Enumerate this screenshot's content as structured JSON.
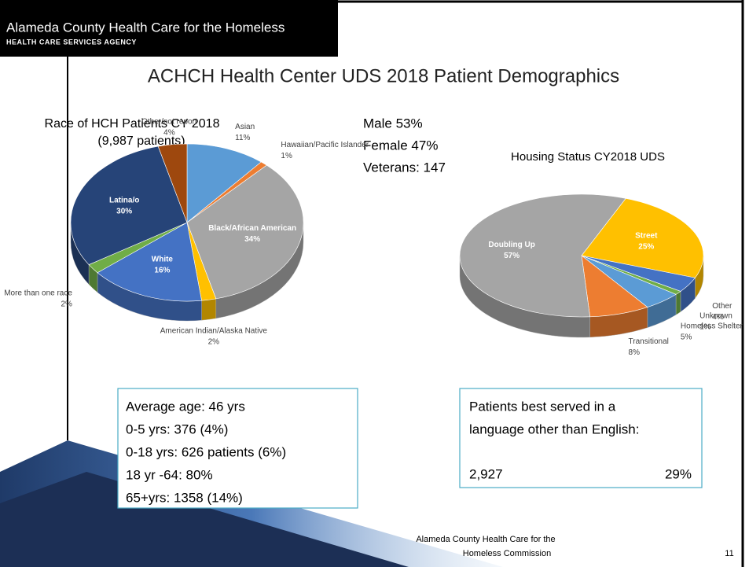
{
  "header": {
    "title": "Alameda County Health Care for the Homeless",
    "subtitle": "Health Care Services Agency"
  },
  "title": "ACHCH Health Center UDS 2018 Patient Demographics",
  "gender": [
    "Male 53%",
    "Female 47%",
    "Veterans: 147"
  ],
  "chart_data": [
    {
      "type": "pie",
      "title": "Race of HCH Patients CY 2018",
      "subtitle": "(9,987 patients)",
      "categories": [
        "Asian",
        "Hawaiian/Pacific Islander",
        "Black/African American",
        "American Indian/Alaska Native",
        "White",
        "More than one race",
        "Latina/o",
        "Other/not report"
      ],
      "values": [
        11,
        1,
        34,
        2,
        16,
        2,
        30,
        4
      ],
      "value_labels": [
        "11%",
        "1%",
        "34%",
        "2%",
        "16%",
        "2%",
        "30%",
        "4%"
      ],
      "colors": [
        "#5b9bd5",
        "#ed7d31",
        "#a5a5a5",
        "#ffc000",
        "#4472c4",
        "#70ad47",
        "#264478",
        "#9e480e"
      ]
    },
    {
      "type": "pie",
      "title": "Housing Status CY2018 UDS",
      "categories": [
        "Street",
        "Other",
        "Unknown",
        "Homeless Shelter",
        "Transitional",
        "Doubling Up"
      ],
      "values": [
        25,
        4,
        1,
        5,
        8,
        57
      ],
      "value_labels": [
        "25%",
        "4%",
        "1%",
        "5%",
        "8%",
        "57%"
      ],
      "colors": [
        "#ffc000",
        "#4472c4",
        "#70ad47",
        "#5b9bd5",
        "#ed7d31",
        "#a5a5a5"
      ]
    }
  ],
  "age_box": [
    "Average age:  46 yrs",
    "0-5 yrs:  376 (4%)",
    "0-18 yrs:  626 patients  (6%)",
    "18 yr -64:  80%",
    "65+yrs:  1358  (14%)"
  ],
  "language_box": {
    "lines": [
      "Patients best served in a",
      "language other than English:"
    ],
    "count": "2,927",
    "percent": "29%"
  },
  "footer": {
    "lines": [
      "Alameda County Health Care for the",
      "Homeless Commission"
    ],
    "page": "11"
  }
}
